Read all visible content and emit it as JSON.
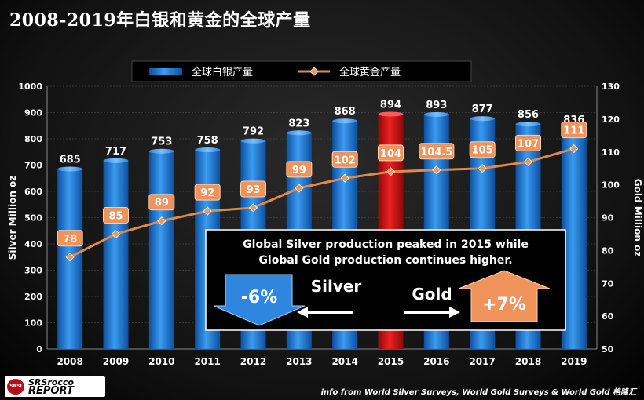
{
  "title": "2008-2019年白银和黄金的全球产量",
  "legend": {
    "silver": "全球白银产量",
    "gold": "全球黄金产量"
  },
  "callout": {
    "line1": "Global Silver production peaked in 2015 while",
    "line2": "Global Gold production continues higher.",
    "silver_label": "Silver",
    "gold_label": "Gold",
    "silver_change": "-6%",
    "gold_change": "+7%"
  },
  "footer": "info from World Silver Surveys, World Gold Surveys & World Gold 格隆汇",
  "logo": {
    "mark": "SRSI",
    "line1": "SRSrocco",
    "line2": "REPORT"
  },
  "colors": {
    "silver_bar": "#1e78d6",
    "peak_bar": "#d01515",
    "gold_line": "#e08a4a",
    "gold_label_bg": "#f0935a"
  },
  "chart_data": {
    "type": "bar",
    "categories": [
      "2008",
      "2009",
      "2010",
      "2011",
      "2012",
      "2013",
      "2014",
      "2015",
      "2016",
      "2017",
      "2018",
      "2019"
    ],
    "series": [
      {
        "name": "全球白银产量",
        "type": "bar",
        "axis": "left",
        "values": [
          685,
          717,
          753,
          758,
          792,
          823,
          868,
          894,
          893,
          877,
          856,
          836
        ],
        "labels": [
          "685",
          "717",
          "753",
          "758",
          "792",
          "823",
          "868",
          "894",
          "893",
          "877",
          "856",
          "836"
        ]
      },
      {
        "name": "全球黄金产量",
        "type": "line",
        "axis": "right",
        "values": [
          78,
          85,
          89,
          92,
          93,
          99,
          102,
          104,
          104.5,
          105,
          107,
          111
        ],
        "labels": [
          "78",
          "85",
          "89",
          "92",
          "93",
          "99",
          "102",
          "104",
          "104.5",
          "105",
          "107",
          "111"
        ]
      }
    ],
    "highlight_category": "2015",
    "ylabel": "Silver Million oz",
    "y2label": "Gold Million oz",
    "ylim": [
      0,
      1000
    ],
    "y2lim": [
      50,
      130
    ],
    "yticks": [
      0,
      100,
      200,
      300,
      400,
      500,
      600,
      700,
      800,
      900,
      1000
    ],
    "y2ticks": [
      50,
      60,
      70,
      80,
      90,
      100,
      110,
      120,
      130
    ]
  }
}
